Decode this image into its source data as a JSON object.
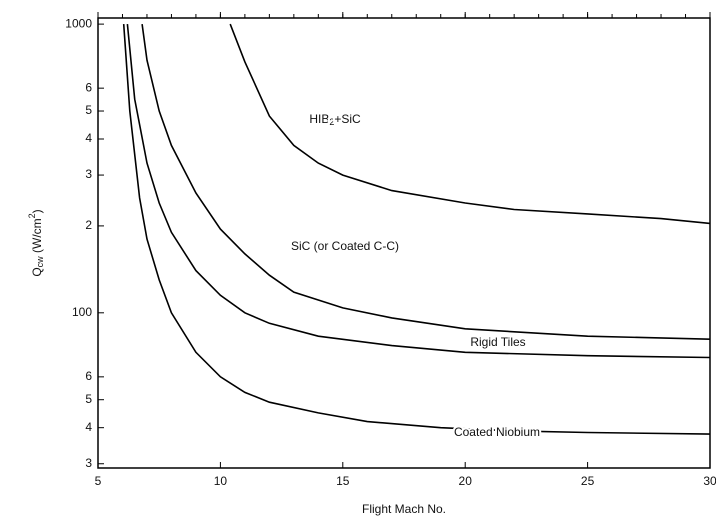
{
  "chart_data": {
    "type": "line",
    "x_label": "Flight Mach No.",
    "y_label": [
      "Q",
      "cw",
      " (W/cm",
      "2",
      ")"
    ],
    "log_y": true,
    "xlim": [
      5,
      30
    ],
    "ylim": [
      29,
      1050
    ],
    "xticks": [
      5,
      10,
      15,
      20,
      25,
      30
    ],
    "yticks": [
      {
        "value": 30,
        "label": "3"
      },
      {
        "value": 40,
        "label": "4"
      },
      {
        "value": 50,
        "label": "5"
      },
      {
        "value": 60,
        "label": "6"
      },
      100,
      {
        "value": 200,
        "label": "2"
      },
      {
        "value": 300,
        "label": "3"
      },
      {
        "value": 400,
        "label": "4"
      },
      {
        "value": 500,
        "label": "5"
      },
      {
        "value": 600,
        "label": "6"
      },
      1000
    ],
    "series": [
      {
        "name": [
          "HIB",
          "2",
          "+SiC"
        ],
        "color": "#000000",
        "x": [
          10.4,
          11,
          12,
          13,
          14,
          15,
          17,
          20,
          22,
          25,
          28,
          30
        ],
        "values": [
          1000,
          740,
          480,
          380,
          330,
          300,
          265,
          240,
          228,
          220,
          212,
          204
        ]
      },
      {
        "name": "SiC (or Coated C-C)",
        "color": "#000000",
        "x": [
          6.8,
          7,
          7.5,
          8,
          9,
          10,
          11,
          12,
          13,
          15,
          17,
          20,
          25,
          30
        ],
        "values": [
          1000,
          750,
          500,
          380,
          260,
          195,
          160,
          135,
          118,
          104,
          96,
          88,
          83,
          81
        ]
      },
      {
        "name": "Rigid Tiles",
        "color": "#000000",
        "x": [
          6.2,
          6.5,
          7,
          7.5,
          8,
          9,
          10,
          11,
          12,
          14,
          17,
          20,
          25,
          30
        ],
        "values": [
          1000,
          550,
          330,
          240,
          190,
          140,
          115,
          100,
          92,
          83,
          77,
          73,
          71,
          70
        ]
      },
      {
        "name": "Coated Niobium",
        "color": "#000000",
        "x": [
          6.05,
          6.3,
          6.7,
          7,
          7.5,
          8,
          9,
          10,
          11,
          12,
          14,
          16,
          19,
          22,
          25,
          30
        ],
        "values": [
          1000,
          500,
          250,
          180,
          130,
          100,
          73,
          60,
          53,
          49,
          45,
          42,
          40,
          39,
          38.5,
          38
        ]
      }
    ]
  }
}
